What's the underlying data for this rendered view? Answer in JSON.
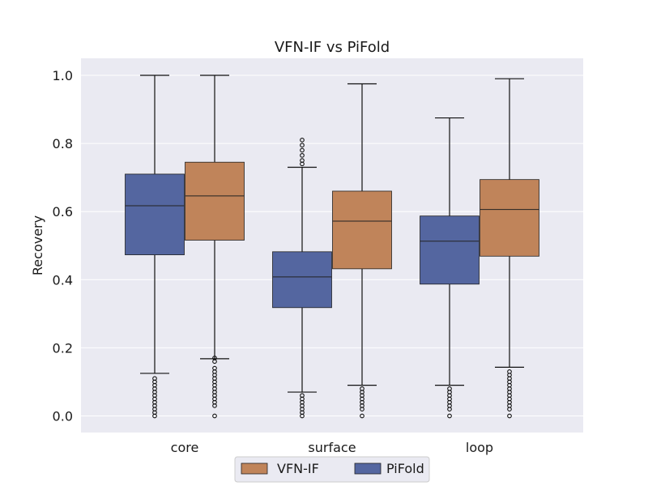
{
  "chart_data": {
    "type": "boxplot",
    "title": "VFN-IF vs PiFold",
    "xlabel": "",
    "ylabel": "Recovery",
    "ylim": [
      -0.05,
      1.05
    ],
    "yticks": [
      0.0,
      0.2,
      0.4,
      0.6,
      0.8,
      1.0
    ],
    "ytick_labels": [
      "0.0",
      "0.2",
      "0.4",
      "0.6",
      "0.8",
      "1.0"
    ],
    "categories": [
      "core",
      "surface",
      "loop"
    ],
    "grid": true,
    "legend_position": "bottom-center",
    "series": [
      {
        "name": "PiFold",
        "color": "#5466a0",
        "boxes": [
          {
            "q1": 0.473,
            "median": 0.617,
            "q3": 0.71,
            "whisker_low": 0.125,
            "whisker_high": 1.0,
            "outliers": [
              0.0,
              0.01,
              0.02,
              0.03,
              0.04,
              0.05,
              0.06,
              0.07,
              0.08,
              0.09,
              0.1,
              0.11
            ]
          },
          {
            "q1": 0.318,
            "median": 0.408,
            "q3": 0.482,
            "whisker_low": 0.07,
            "whisker_high": 0.73,
            "outliers": [
              0.0,
              0.01,
              0.02,
              0.03,
              0.04,
              0.05,
              0.06,
              0.74,
              0.75,
              0.765,
              0.78,
              0.795,
              0.81
            ]
          },
          {
            "q1": 0.387,
            "median": 0.513,
            "q3": 0.587,
            "whisker_low": 0.09,
            "whisker_high": 0.875,
            "outliers": [
              0.0,
              0.02,
              0.03,
              0.04,
              0.05,
              0.06,
              0.07,
              0.08
            ]
          }
        ]
      },
      {
        "name": "VFN-IF",
        "color": "#c0845a",
        "boxes": [
          {
            "q1": 0.516,
            "median": 0.646,
            "q3": 0.745,
            "whisker_low": 0.168,
            "whisker_high": 1.0,
            "outliers": [
              0.0,
              0.03,
              0.04,
              0.05,
              0.06,
              0.07,
              0.08,
              0.09,
              0.1,
              0.11,
              0.12,
              0.13,
              0.14,
              0.16,
              0.17
            ]
          },
          {
            "q1": 0.432,
            "median": 0.572,
            "q3": 0.66,
            "whisker_low": 0.09,
            "whisker_high": 0.975,
            "outliers": [
              0.0,
              0.02,
              0.03,
              0.04,
              0.05,
              0.06,
              0.07,
              0.08
            ]
          },
          {
            "q1": 0.469,
            "median": 0.606,
            "q3": 0.694,
            "whisker_low": 0.143,
            "whisker_high": 0.99,
            "outliers": [
              0.0,
              0.02,
              0.03,
              0.04,
              0.05,
              0.06,
              0.07,
              0.08,
              0.09,
              0.1,
              0.11,
              0.12,
              0.13
            ]
          }
        ]
      }
    ],
    "legend": [
      {
        "label": "VFN-IF",
        "color": "#c0845a"
      },
      {
        "label": "PiFold",
        "color": "#5466a0"
      }
    ],
    "background": "#eaeaf2",
    "gridline_color": "#ffffff"
  }
}
